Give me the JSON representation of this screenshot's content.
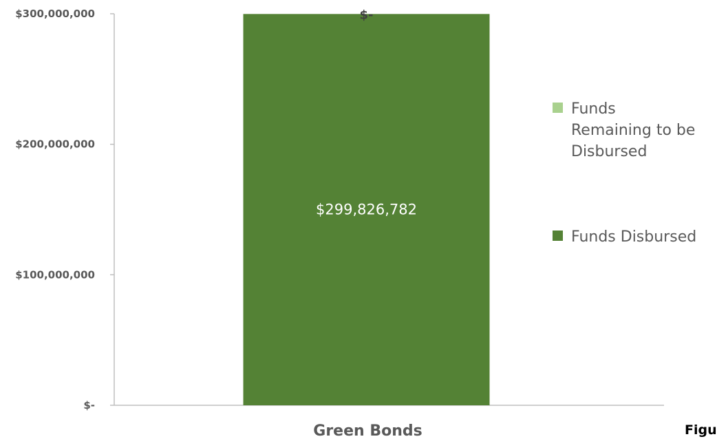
{
  "chart_data": {
    "type": "bar",
    "stacked": true,
    "categories": [
      "Green Bonds"
    ],
    "series": [
      {
        "name": "Funds Disbursed",
        "values": [
          299826782
        ],
        "color": "#548235",
        "data_labels": [
          "$299,826,782"
        ]
      },
      {
        "name": "Funds Remaining to be Disbursed",
        "values": [
          0
        ],
        "color": "#a9d18e",
        "data_labels": [
          "$-"
        ]
      }
    ],
    "ylim": [
      0,
      300000000
    ],
    "y_ticks": [
      {
        "value": 0,
        "label": "$-"
      },
      {
        "value": 100000000,
        "label": "$100,000,000"
      },
      {
        "value": 200000000,
        "label": "$200,000,000"
      },
      {
        "value": 300000000,
        "label": "$300,000,000"
      }
    ],
    "legend": {
      "position": "right",
      "entries": [
        {
          "lines": [
            "Funds",
            "Remaining to be",
            "Disbursed"
          ],
          "color": "#a9d18e"
        },
        {
          "lines": [
            "Funds Disbursed"
          ],
          "color": "#548235"
        }
      ]
    },
    "grid": false,
    "axis_color": "#bfbfbf"
  },
  "caption": "Figure"
}
